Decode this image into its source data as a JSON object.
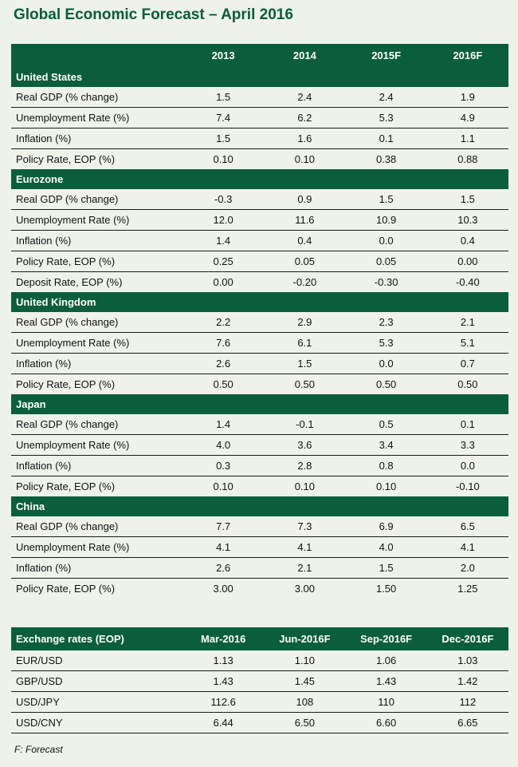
{
  "title": "Global Economic Forecast – April 2016",
  "main_table": {
    "columns": [
      "",
      "2013",
      "2014",
      "2015F",
      "2016F"
    ],
    "sections": [
      {
        "name": "United States",
        "rows": [
          {
            "label": "Real GDP (% change)",
            "values": [
              "1.5",
              "2.4",
              "2.4",
              "1.9"
            ]
          },
          {
            "label": "Unemployment Rate (%)",
            "values": [
              "7.4",
              "6.2",
              "5.3",
              "4.9"
            ]
          },
          {
            "label": "Inflation (%)",
            "values": [
              "1.5",
              "1.6",
              "0.1",
              "1.1"
            ]
          },
          {
            "label": "Policy Rate, EOP (%)",
            "values": [
              "0.10",
              "0.10",
              "0.38",
              "0.88"
            ]
          }
        ]
      },
      {
        "name": "Eurozone",
        "rows": [
          {
            "label": "Real GDP (% change)",
            "values": [
              "-0.3",
              "0.9",
              "1.5",
              "1.5"
            ]
          },
          {
            "label": "Unemployment Rate (%)",
            "values": [
              "12.0",
              "11.6",
              "10.9",
              "10.3"
            ]
          },
          {
            "label": "Inflation (%)",
            "values": [
              "1.4",
              "0.4",
              "0.0",
              "0.4"
            ]
          },
          {
            "label": "Policy Rate, EOP (%)",
            "values": [
              "0.25",
              "0.05",
              "0.05",
              "0.00"
            ]
          },
          {
            "label": "Deposit Rate, EOP (%)",
            "values": [
              "0.00",
              "-0.20",
              "-0.30",
              "-0.40"
            ]
          }
        ]
      },
      {
        "name": "United Kingdom",
        "rows": [
          {
            "label": "Real GDP (% change)",
            "values": [
              "2.2",
              "2.9",
              "2.3",
              "2.1"
            ]
          },
          {
            "label": "Unemployment Rate (%)",
            "values": [
              "7.6",
              "6.1",
              "5.3",
              "5.1"
            ]
          },
          {
            "label": "Inflation (%)",
            "values": [
              "2.6",
              "1.5",
              "0.0",
              "0.7"
            ]
          },
          {
            "label": "Policy Rate, EOP (%)",
            "values": [
              "0.50",
              "0.50",
              "0.50",
              "0.50"
            ]
          }
        ]
      },
      {
        "name": "Japan",
        "rows": [
          {
            "label": "Real GDP (% change)",
            "values": [
              "1.4",
              "-0.1",
              "0.5",
              "0.1"
            ]
          },
          {
            "label": "Unemployment Rate (%)",
            "values": [
              "4.0",
              "3.6",
              "3.4",
              "3.3"
            ]
          },
          {
            "label": "Inflation (%)",
            "values": [
              "0.3",
              "2.8",
              "0.8",
              "0.0"
            ]
          },
          {
            "label": "Policy Rate, EOP (%)",
            "values": [
              "0.10",
              "0.10",
              "0.10",
              "-0.10"
            ]
          }
        ]
      },
      {
        "name": "China",
        "rows": [
          {
            "label": "Real GDP (% change)",
            "values": [
              "7.7",
              "7.3",
              "6.9",
              "6.5"
            ]
          },
          {
            "label": "Unemployment Rate (%)",
            "values": [
              "4.1",
              "4.1",
              "4.0",
              "4.1"
            ]
          },
          {
            "label": "Inflation (%)",
            "values": [
              "2.6",
              "2.1",
              "1.5",
              "2.0"
            ]
          },
          {
            "label": "Policy Rate, EOP (%)",
            "values": [
              "3.00",
              "3.00",
              "1.50",
              "1.25"
            ]
          }
        ]
      }
    ]
  },
  "fx_table": {
    "columns": [
      "Exchange rates (EOP)",
      "Mar-2016",
      "Jun-2016F",
      "Sep-2016F",
      "Dec-2016F"
    ],
    "rows": [
      {
        "label": "EUR/USD",
        "values": [
          "1.13",
          "1.10",
          "1.06",
          "1.03"
        ]
      },
      {
        "label": "GBP/USD",
        "values": [
          "1.43",
          "1.45",
          "1.43",
          "1.42"
        ]
      },
      {
        "label": "USD/JPY",
        "values": [
          "112.6",
          "108",
          "110",
          "112"
        ]
      },
      {
        "label": "USD/CNY",
        "values": [
          "6.44",
          "6.50",
          "6.60",
          "6.65"
        ]
      }
    ]
  },
  "footnote": "F: Forecast",
  "colors": {
    "header_green": "#0b5e3c",
    "title_green": "#0a5c3b",
    "background": "#eef3ea"
  }
}
